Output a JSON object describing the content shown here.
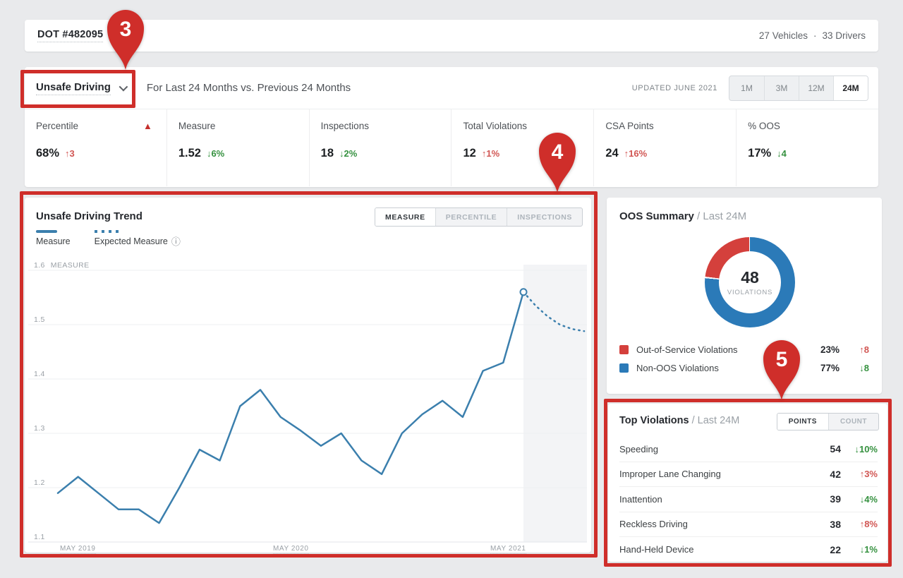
{
  "colors": {
    "annotation_red": "#cf2e2a",
    "line_blue": "#3b7fad",
    "donut_red": "#d4403c",
    "donut_blue": "#2b7ab8",
    "delta_green": "#35913f",
    "delta_red": "#d15653"
  },
  "top_bar": {
    "dot_number": "DOT #482095",
    "vehicles": "27 Vehicles",
    "separator": "·",
    "drivers": "33 Drivers"
  },
  "filter_bar": {
    "metric_dropdown": "Unsafe Driving",
    "subtitle": "For Last 24 Months vs. Previous 24 Months",
    "updated": "UPDATED JUNE 2021",
    "ranges": [
      {
        "label": "1M",
        "active": false
      },
      {
        "label": "3M",
        "active": false
      },
      {
        "label": "12M",
        "active": false
      },
      {
        "label": "24M",
        "active": true
      }
    ]
  },
  "stats": [
    {
      "label": "Percentile",
      "warning_icon": "▲",
      "value": "68%",
      "delta": "↑3",
      "trend": "bad"
    },
    {
      "label": "Measure",
      "value": "1.52",
      "delta": "↓6%",
      "trend": "good"
    },
    {
      "label": "Inspections",
      "value": "18",
      "delta": "↓2%",
      "trend": "good"
    },
    {
      "label": "Total Violations",
      "value": "12",
      "delta": "↑1%",
      "trend": "bad"
    },
    {
      "label": "CSA Points",
      "value": "24",
      "delta": "↑16%",
      "trend": "bad"
    },
    {
      "label": "% OOS",
      "value": "17%",
      "delta": "↓4",
      "trend": "good"
    }
  ],
  "trend_card": {
    "title": "Unsafe Driving Trend",
    "tabs": [
      {
        "label": "MEASURE",
        "active": true
      },
      {
        "label": "PERCENTILE",
        "active": false
      },
      {
        "label": "INSPECTIONS",
        "active": false
      }
    ],
    "legend": [
      {
        "label": "Measure",
        "style": "solid"
      },
      {
        "label": "Expected Measure",
        "style": "dotted",
        "info_icon": "ⓘ"
      }
    ]
  },
  "chart_data": [
    {
      "type": "line",
      "title": "Unsafe Driving Trend",
      "ylabel": "MEASURE",
      "ylim": [
        1.1,
        1.6
      ],
      "yticks": [
        "1.6",
        "1.5",
        "1.4",
        "1.3",
        "1.2",
        "1.1"
      ],
      "x_tick_labels": [
        "MAY 2019",
        "MAY 2020",
        "MAY 2021"
      ],
      "x_range_months": "monthly, May 2019 - May 2021",
      "grid": "horizontal",
      "legend_position": "top-left",
      "series": [
        {
          "name": "Measure",
          "style": "solid",
          "values": [
            1.19,
            1.22,
            1.19,
            1.16,
            1.16,
            1.135,
            1.2,
            1.27,
            1.25,
            1.35,
            1.38,
            1.33,
            1.305,
            1.277,
            1.3,
            1.25,
            1.225,
            1.3,
            1.335,
            1.36,
            1.33,
            1.415,
            1.43,
            1.56
          ]
        },
        {
          "name": "Expected Measure",
          "style": "dotted",
          "values": [
            1.56,
            1.535,
            1.515,
            1.5,
            1.492,
            1.488
          ]
        }
      ],
      "forecast_shaded_region": true
    },
    {
      "type": "pie",
      "title": "OOS Summary / Last 24M",
      "labels": [
        "Out-of-Service Violations",
        "Non-OOS Violations"
      ],
      "values": [
        23,
        77
      ],
      "colors": [
        "#d4403c",
        "#2b7ab8"
      ],
      "center_value": "48",
      "center_label": "VIOLATIONS"
    }
  ],
  "oos_card": {
    "title": "OOS Summary",
    "subtitle": "/ Last 24M",
    "donut_center_value": "48",
    "donut_center_label": "VIOLATIONS",
    "segments": [
      {
        "label": "Out-of-Service Violations",
        "pct": "23%",
        "delta": "↑8",
        "trend": "bad",
        "color": "#d4403c"
      },
      {
        "label": "Non-OOS Violations",
        "pct": "77%",
        "delta": "↓8",
        "trend": "good",
        "color": "#2b7ab8"
      }
    ]
  },
  "violations_card": {
    "title": "Top Violations",
    "subtitle": "/ Last 24M",
    "toggle": [
      {
        "label": "POINTS",
        "active": true
      },
      {
        "label": "COUNT",
        "active": false
      }
    ],
    "rows": [
      {
        "label": "Speeding",
        "value": "54",
        "delta": "↓10%",
        "trend": "good"
      },
      {
        "label": "Improper Lane Changing",
        "value": "42",
        "delta": "↑3%",
        "trend": "bad"
      },
      {
        "label": "Inattention",
        "value": "39",
        "delta": "↓4%",
        "trend": "good"
      },
      {
        "label": "Reckless Driving",
        "value": "38",
        "delta": "↑8%",
        "trend": "bad"
      },
      {
        "label": "Hand-Held Device",
        "value": "22",
        "delta": "↓1%",
        "trend": "good"
      }
    ]
  },
  "callouts": [
    {
      "number": "3"
    },
    {
      "number": "4"
    },
    {
      "number": "5"
    }
  ]
}
